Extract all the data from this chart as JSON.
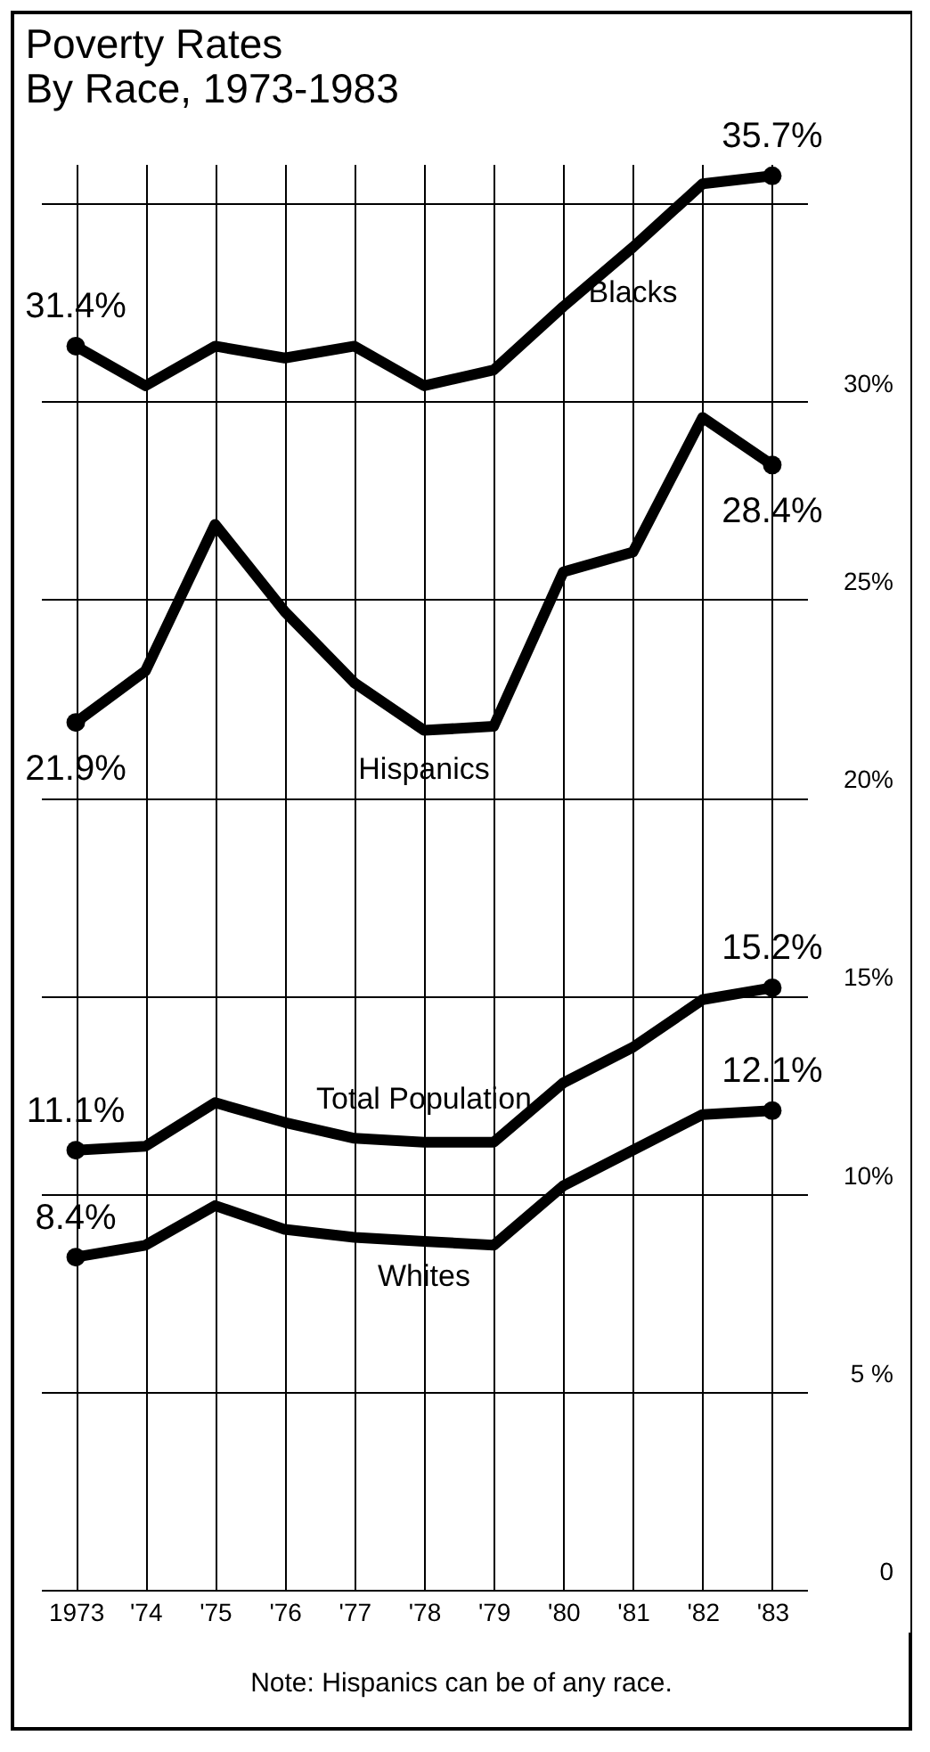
{
  "chart_data": {
    "type": "line",
    "title": "Poverty Rates\nBy Race, 1973-1983",
    "categories": [
      "1973",
      "'74",
      "'75",
      "'76",
      "'77",
      "'78",
      "'79",
      "'80",
      "'81",
      "'82",
      "'83"
    ],
    "series": [
      {
        "name": "Blacks",
        "color": "#000000",
        "values": [
          31.4,
          30.4,
          31.4,
          31.1,
          31.4,
          30.4,
          30.8,
          32.4,
          33.9,
          35.5,
          35.7
        ],
        "value_labels": [
          "31.4%",
          null,
          null,
          null,
          null,
          null,
          null,
          null,
          null,
          null,
          "35.7%"
        ]
      },
      {
        "name": "Hispanics",
        "color": "#000000",
        "values": [
          21.9,
          23.2,
          26.9,
          24.7,
          22.9,
          21.7,
          21.8,
          25.7,
          26.2,
          29.6,
          28.4
        ],
        "value_labels": [
          "21.9%",
          null,
          null,
          null,
          null,
          null,
          null,
          null,
          null,
          null,
          "28.4%"
        ]
      },
      {
        "name": "Total Population",
        "color": "#000000",
        "values": [
          11.1,
          11.2,
          12.3,
          11.8,
          11.4,
          11.3,
          11.3,
          12.8,
          13.7,
          14.9,
          15.2
        ],
        "value_labels": [
          "11.1%",
          null,
          null,
          null,
          null,
          null,
          null,
          null,
          null,
          null,
          "15.2%"
        ]
      },
      {
        "name": "Whites",
        "color": "#000000",
        "values": [
          8.4,
          8.7,
          9.7,
          9.1,
          8.9,
          8.8,
          8.7,
          10.2,
          11.1,
          12.0,
          12.1
        ],
        "value_labels": [
          "8.4%",
          null,
          null,
          null,
          null,
          null,
          null,
          null,
          null,
          null,
          "12.1%"
        ]
      }
    ],
    "ylim": [
      0,
      36
    ],
    "yticks": [
      {
        "value": 0,
        "label": "0"
      },
      {
        "value": 5,
        "label": "5 %"
      },
      {
        "value": 10,
        "label": "10%"
      },
      {
        "value": 15,
        "label": "15%"
      },
      {
        "value": 20,
        "label": "20%"
      },
      {
        "value": 25,
        "label": "25%"
      },
      {
        "value": 30,
        "label": "30%"
      },
      {
        "value": 35,
        "label": null
      }
    ],
    "grid": true,
    "line_style": "solid",
    "annotations": [
      "Note: Hispanics can be of any race."
    ]
  }
}
